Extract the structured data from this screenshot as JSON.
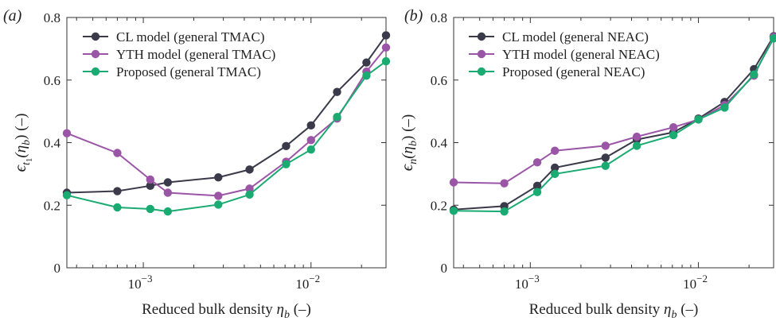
{
  "chart_data": [
    {
      "type": "line",
      "panel_tag": "(a)",
      "xscale": "log",
      "xlim": [
        0.00035,
        0.028
      ],
      "ylim": [
        0,
        0.8
      ],
      "yticks": [
        "0",
        "0.2",
        "0.4",
        "0.6",
        "0.8"
      ],
      "xticks": [
        {
          "base": "10",
          "exp": "−3"
        },
        {
          "base": "10",
          "exp": "−2"
        }
      ],
      "xlabel": {
        "text": "Reduced bulk density ",
        "symbol": "η",
        "sub": "b",
        "unit": " (–)"
      },
      "ylabel": {
        "symbol": "ϵ",
        "sub": "t",
        "subsub": "1",
        "arg": "(η",
        "argsub": "b",
        "close": ") (–)"
      },
      "legend_position": "top-left",
      "grid": false,
      "series": [
        {
          "name": "CL model (general TMAC)",
          "color": "#3a3a4a",
          "x": [
            0.00035,
            0.0007,
            0.0011,
            0.0014,
            0.0028,
            0.0043,
            0.0071,
            0.01,
            0.0143,
            0.0214,
            0.028
          ],
          "y": [
            0.24,
            0.245,
            0.262,
            0.273,
            0.289,
            0.314,
            0.389,
            0.455,
            0.562,
            0.656,
            0.743
          ]
        },
        {
          "name": "YTH model (general TMAC)",
          "color": "#9b55a6",
          "x": [
            0.00035,
            0.0007,
            0.0011,
            0.0014,
            0.0028,
            0.0043,
            0.0071,
            0.01,
            0.0143,
            0.0214,
            0.028
          ],
          "y": [
            0.43,
            0.367,
            0.282,
            0.24,
            0.23,
            0.253,
            0.339,
            0.408,
            0.477,
            0.627,
            0.704
          ]
        },
        {
          "name": "Proposed (general TMAC)",
          "color": "#1aab72",
          "x": [
            0.00035,
            0.0007,
            0.0011,
            0.0014,
            0.0028,
            0.0043,
            0.0071,
            0.01,
            0.0143,
            0.0214,
            0.028
          ],
          "y": [
            0.232,
            0.193,
            0.188,
            0.18,
            0.202,
            0.234,
            0.331,
            0.378,
            0.482,
            0.614,
            0.66
          ]
        }
      ]
    },
    {
      "type": "line",
      "panel_tag": "(b)",
      "xscale": "log",
      "xlim": [
        0.00035,
        0.028
      ],
      "ylim": [
        0,
        0.8
      ],
      "yticks": [
        "0",
        "0.2",
        "0.4",
        "0.6",
        "0.8"
      ],
      "xticks": [
        {
          "base": "10",
          "exp": "−3"
        },
        {
          "base": "10",
          "exp": "−2"
        }
      ],
      "xlabel": {
        "text": "Reduced bulk density ",
        "symbol": "η",
        "sub": "b",
        "unit": " (–)"
      },
      "ylabel": {
        "symbol": "ϵ",
        "sub": "n",
        "subsub": "",
        "arg": "(η",
        "argsub": "b",
        "close": ") (–)"
      },
      "legend_position": "top-left",
      "grid": false,
      "series": [
        {
          "name": "CL model (general NEAC)",
          "color": "#3a3a4a",
          "x": [
            0.00035,
            0.0007,
            0.0011,
            0.0014,
            0.0028,
            0.0043,
            0.0071,
            0.01,
            0.0143,
            0.0214,
            0.028
          ],
          "y": [
            0.186,
            0.197,
            0.262,
            0.32,
            0.352,
            0.41,
            0.433,
            0.477,
            0.53,
            0.635,
            0.74
          ]
        },
        {
          "name": "YTH model (general NEAC)",
          "color": "#9b55a6",
          "x": [
            0.00035,
            0.0007,
            0.0011,
            0.0014,
            0.0028,
            0.0043,
            0.0071,
            0.01,
            0.0143,
            0.0214,
            0.028
          ],
          "y": [
            0.273,
            0.27,
            0.337,
            0.374,
            0.39,
            0.419,
            0.449,
            0.474,
            0.52,
            0.614,
            0.738
          ]
        },
        {
          "name": "Proposed (general NEAC)",
          "color": "#1aab72",
          "x": [
            0.00035,
            0.0007,
            0.0011,
            0.0014,
            0.0028,
            0.0043,
            0.0071,
            0.01,
            0.0143,
            0.0214,
            0.028
          ],
          "y": [
            0.182,
            0.18,
            0.242,
            0.3,
            0.326,
            0.39,
            0.424,
            0.474,
            0.512,
            0.618,
            0.733
          ]
        }
      ]
    }
  ]
}
